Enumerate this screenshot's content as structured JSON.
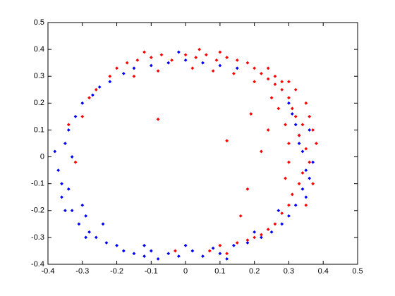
{
  "chart_data": {
    "type": "scatter",
    "xlim": [
      -0.4,
      0.5
    ],
    "ylim": [
      -0.4,
      0.5
    ],
    "xticks": [
      -0.4,
      -0.3,
      -0.2,
      -0.1,
      0,
      0.1,
      0.2,
      0.3,
      0.4,
      0.5
    ],
    "yticks": [
      -0.4,
      -0.3,
      -0.2,
      -0.1,
      0,
      0.1,
      0.2,
      0.3,
      0.4,
      0.5
    ],
    "series": [
      {
        "color": "#0000ff",
        "x": [
          -0.38,
          -0.37,
          -0.36,
          -0.35,
          -0.34,
          -0.36,
          -0.33,
          -0.32,
          -0.3,
          -0.34,
          -0.31,
          -0.29,
          -0.28,
          -0.27,
          -0.25,
          -0.26,
          -0.23,
          -0.2,
          -0.22,
          -0.18,
          -0.15,
          -0.12,
          -0.1,
          -0.08,
          -0.05,
          -0.02,
          0.02,
          0.05,
          0.08,
          0.1,
          0.14,
          0.18,
          0.22,
          0.25,
          0.28,
          0.3,
          0.32,
          0.34,
          0.35,
          0.34,
          0.33,
          0.32,
          0.31,
          0.35,
          0.36,
          0.33,
          -0.18,
          -0.15,
          -0.1,
          -0.05,
          0.0,
          -0.02,
          0.05,
          0.1,
          0.15,
          -0.3,
          -0.33,
          -0.35,
          -0.29,
          -0.24,
          -0.12,
          0.0,
          0.12,
          0.2,
          0.27,
          0.37,
          0.36,
          0.3
        ],
        "values": [
          0.02,
          -0.05,
          -0.1,
          0.05,
          0.1,
          -0.15,
          -0.2,
          0.15,
          0.2,
          -0.12,
          -0.25,
          -0.22,
          -0.28,
          0.23,
          0.26,
          -0.3,
          -0.32,
          -0.33,
          0.28,
          -0.35,
          -0.36,
          -0.37,
          -0.35,
          -0.38,
          -0.36,
          -0.37,
          -0.35,
          -0.37,
          -0.34,
          -0.36,
          -0.33,
          -0.32,
          -0.3,
          -0.28,
          -0.25,
          -0.22,
          -0.18,
          -0.12,
          -0.05,
          0.02,
          0.08,
          0.12,
          0.16,
          -0.15,
          -0.08,
          0.05,
          0.31,
          0.33,
          0.34,
          0.35,
          0.36,
          0.39,
          0.35,
          0.34,
          0.33,
          -0.18,
          0.0,
          -0.2,
          -0.3,
          -0.25,
          -0.33,
          -0.33,
          -0.38,
          -0.28,
          -0.2,
          -0.02,
          0.1,
          0.2
        ]
      },
      {
        "color": "#ff0000",
        "x": [
          -0.22,
          -0.2,
          -0.17,
          -0.14,
          -0.1,
          -0.07,
          -0.04,
          0.0,
          0.03,
          0.06,
          0.09,
          0.12,
          0.15,
          0.18,
          0.2,
          0.22,
          0.24,
          0.26,
          0.28,
          0.3,
          0.31,
          0.32,
          0.34,
          0.33,
          0.35,
          0.36,
          0.34,
          0.33,
          0.31,
          0.3,
          0.28,
          0.26,
          0.24,
          0.22,
          0.18,
          0.15,
          0.1,
          -0.15,
          -0.08,
          0.02,
          0.08,
          0.14,
          0.2,
          0.25,
          0.27,
          0.29,
          0.3,
          0.3,
          0.29,
          0.28,
          0.32,
          0.35,
          0.36,
          0.37,
          0.38,
          0.37,
          0.35,
          -0.3,
          -0.28,
          -0.34,
          -0.32,
          -0.26,
          -0.08,
          0.12,
          0.22,
          0.18,
          0.19,
          0.24,
          0.16,
          -0.03,
          0.07,
          0.12,
          0.2,
          0.24,
          0.26,
          0.3,
          0.1,
          -0.12,
          0.04
        ],
        "values": [
          0.3,
          0.33,
          0.35,
          0.36,
          0.37,
          0.38,
          0.36,
          0.38,
          0.37,
          0.38,
          0.36,
          0.37,
          0.36,
          0.35,
          0.33,
          0.31,
          0.29,
          0.27,
          0.25,
          0.22,
          0.18,
          0.15,
          0.12,
          0.08,
          0.03,
          -0.02,
          -0.06,
          -0.1,
          -0.14,
          -0.18,
          -0.21,
          -0.25,
          -0.27,
          -0.29,
          -0.31,
          -0.32,
          -0.33,
          0.3,
          0.32,
          0.33,
          0.32,
          0.31,
          0.28,
          0.22,
          0.18,
          0.12,
          0.05,
          -0.02,
          -0.08,
          0.28,
          0.25,
          0.2,
          0.15,
          0.1,
          0.05,
          -0.1,
          -0.18,
          0.15,
          0.22,
          0.12,
          -0.02,
          0.25,
          0.14,
          0.06,
          0.02,
          -0.12,
          0.16,
          0.1,
          -0.22,
          -0.35,
          -0.35,
          -0.36,
          -0.3,
          0.33,
          0.3,
          0.28,
          0.39,
          0.39,
          0.4
        ]
      }
    ]
  }
}
